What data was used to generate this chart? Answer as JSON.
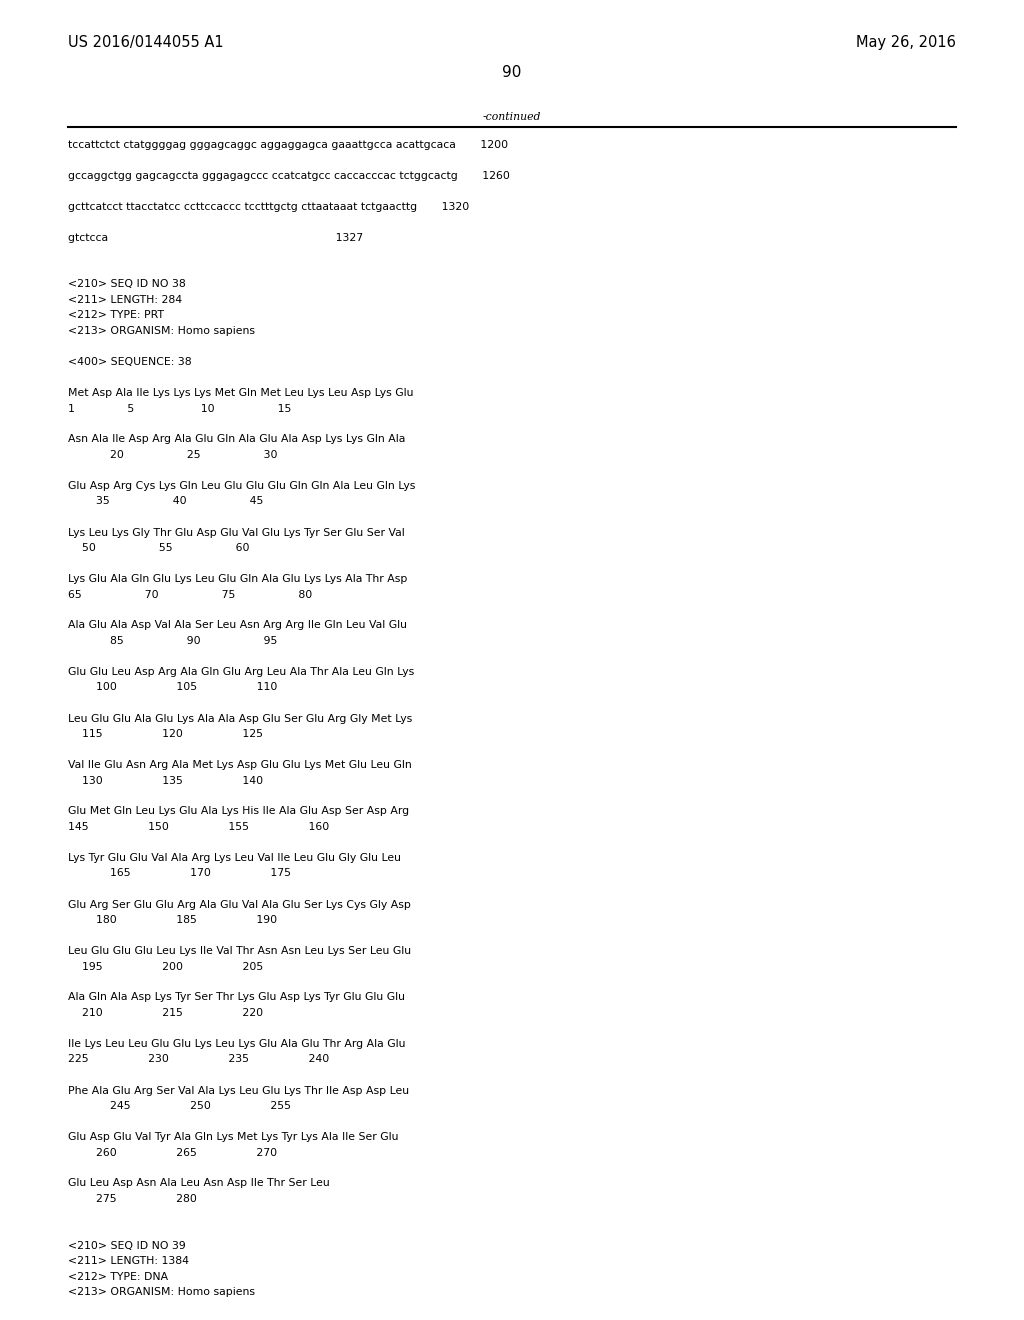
{
  "header_left": "US 2016/0144055 A1",
  "header_right": "May 26, 2016",
  "page_number": "90",
  "continued_label": "-continued",
  "background_color": "#ffffff",
  "text_color": "#000000",
  "font_size_header": 10.5,
  "font_size_body": 7.8,
  "font_size_page": 11,
  "lines": [
    "tccattctct ctatggggag gggagcaggc aggaggagca gaaattgcca acattgcaca       1200",
    "",
    "gccaggctgg gagcagccta gggagagccc ccatcatgcc caccacccac tctggcactg       1260",
    "",
    "gcttcatcct ttacctatcc ccttccaccc tcctttgctg cttaataaat tctgaacttg       1320",
    "",
    "gtctcca                                                                 1327",
    "",
    "",
    "<210> SEQ ID NO 38",
    "<211> LENGTH: 284",
    "<212> TYPE: PRT",
    "<213> ORGANISM: Homo sapiens",
    "",
    "<400> SEQUENCE: 38",
    "",
    "Met Asp Ala Ile Lys Lys Lys Met Gln Met Leu Lys Leu Asp Lys Glu",
    "1               5                   10                  15",
    "",
    "Asn Ala Ile Asp Arg Ala Glu Gln Ala Glu Ala Asp Lys Lys Gln Ala",
    "            20                  25                  30",
    "",
    "Glu Asp Arg Cys Lys Gln Leu Glu Glu Glu Gln Gln Ala Leu Gln Lys",
    "        35                  40                  45",
    "",
    "Lys Leu Lys Gly Thr Glu Asp Glu Val Glu Lys Tyr Ser Glu Ser Val",
    "    50                  55                  60",
    "",
    "Lys Glu Ala Gln Glu Lys Leu Glu Gln Ala Glu Lys Lys Ala Thr Asp",
    "65                  70                  75                  80",
    "",
    "Ala Glu Ala Asp Val Ala Ser Leu Asn Arg Arg Ile Gln Leu Val Glu",
    "            85                  90                  95",
    "",
    "Glu Glu Leu Asp Arg Ala Gln Glu Arg Leu Ala Thr Ala Leu Gln Lys",
    "        100                 105                 110",
    "",
    "Leu Glu Glu Ala Glu Lys Ala Ala Asp Glu Ser Glu Arg Gly Met Lys",
    "    115                 120                 125",
    "",
    "Val Ile Glu Asn Arg Ala Met Lys Asp Glu Glu Lys Met Glu Leu Gln",
    "    130                 135                 140",
    "",
    "Glu Met Gln Leu Lys Glu Ala Lys His Ile Ala Glu Asp Ser Asp Arg",
    "145                 150                 155                 160",
    "",
    "Lys Tyr Glu Glu Val Ala Arg Lys Leu Val Ile Leu Glu Gly Glu Leu",
    "            165                 170                 175",
    "",
    "Glu Arg Ser Glu Glu Arg Ala Glu Val Ala Glu Ser Lys Cys Gly Asp",
    "        180                 185                 190",
    "",
    "Leu Glu Glu Glu Leu Lys Ile Val Thr Asn Asn Leu Lys Ser Leu Glu",
    "    195                 200                 205",
    "",
    "Ala Gln Ala Asp Lys Tyr Ser Thr Lys Glu Asp Lys Tyr Glu Glu Glu",
    "    210                 215                 220",
    "",
    "Ile Lys Leu Leu Glu Glu Lys Leu Lys Glu Ala Glu Thr Arg Ala Glu",
    "225                 230                 235                 240",
    "",
    "Phe Ala Glu Arg Ser Val Ala Lys Leu Glu Lys Thr Ile Asp Asp Leu",
    "            245                 250                 255",
    "",
    "Glu Asp Glu Val Tyr Ala Gln Lys Met Lys Tyr Lys Ala Ile Ser Glu",
    "        260                 265                 270",
    "",
    "Glu Leu Asp Asn Ala Leu Asn Asp Ile Thr Ser Leu",
    "        275                 280",
    "",
    "",
    "<210> SEQ ID NO 39",
    "<211> LENGTH: 1384",
    "<212> TYPE: DNA",
    "<213> ORGANISM: Homo sapiens"
  ]
}
